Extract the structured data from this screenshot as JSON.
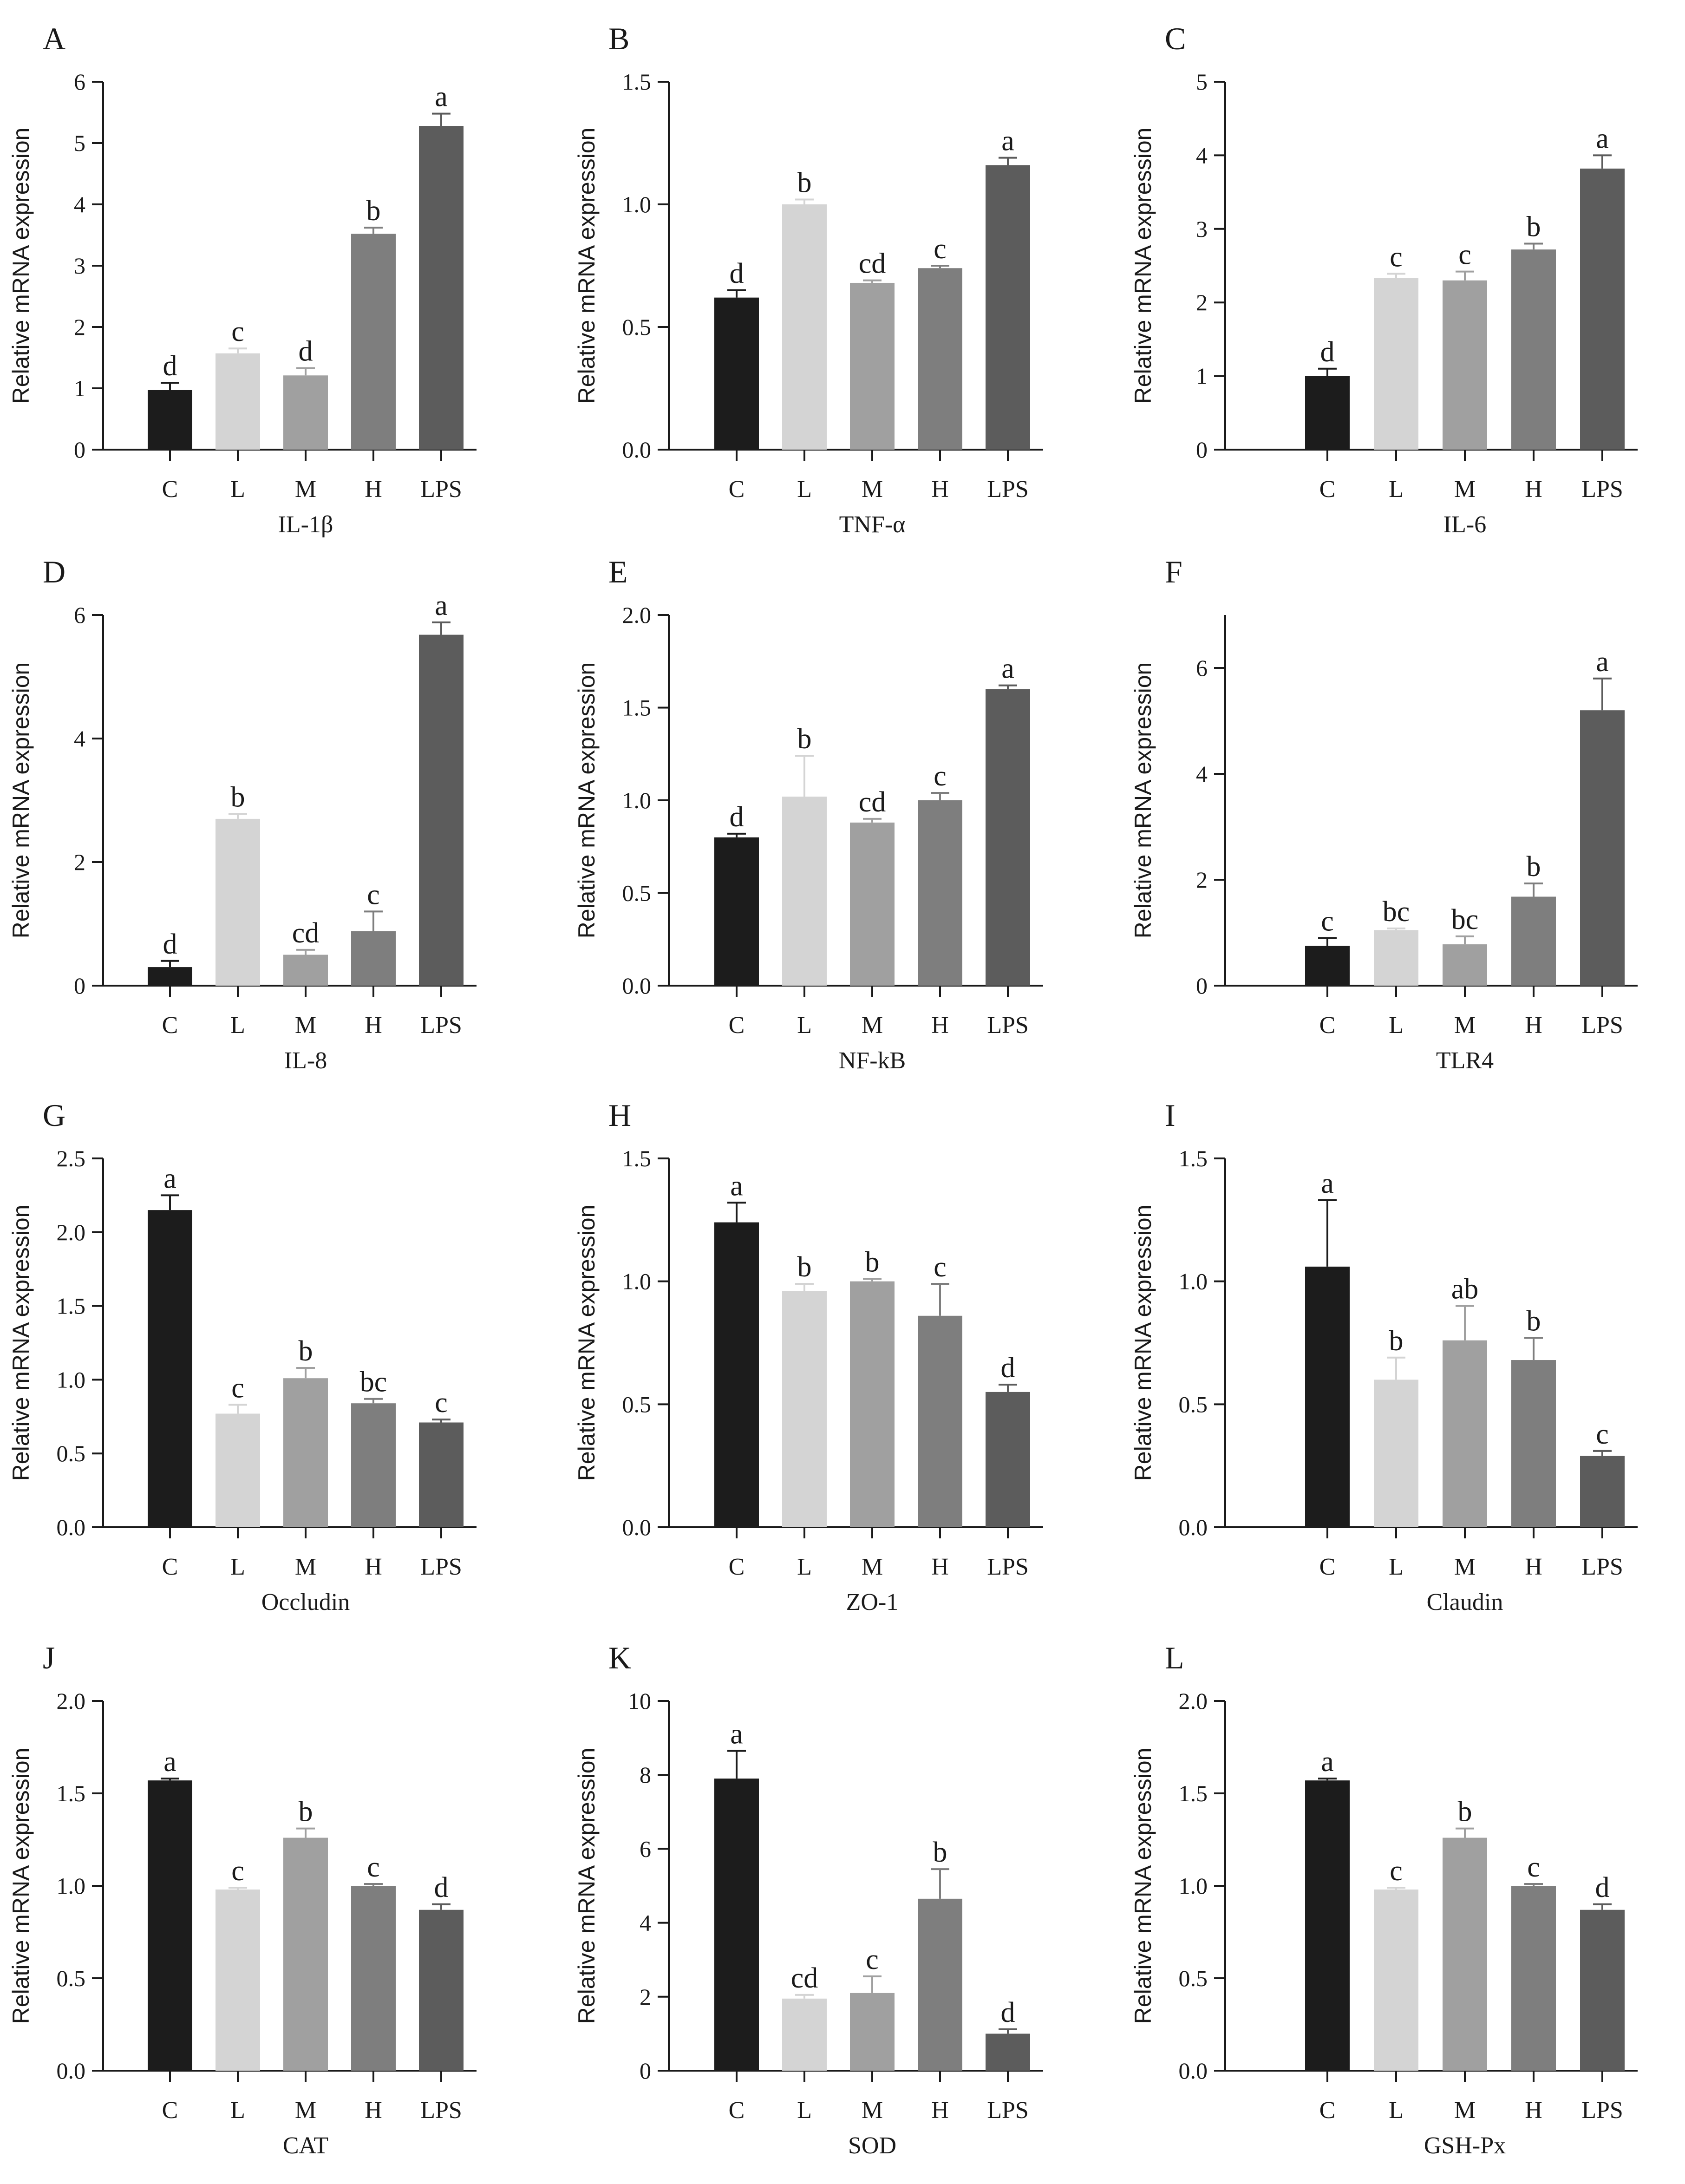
{
  "y_axis_label": "Relative mRNA expression",
  "colors": {
    "C": "#1c1c1c",
    "L": "#d4d4d4",
    "M": "#a0a0a0",
    "H": "#7e7e7e",
    "LPS": "#5c5c5c",
    "axis": "#1a1a1a"
  },
  "chart_data": [
    {
      "type": "bar",
      "panel": "A",
      "title": "IL-1β",
      "categories": [
        "C",
        "L",
        "M",
        "H",
        "LPS"
      ],
      "values": [
        0.97,
        1.57,
        1.21,
        3.52,
        5.28
      ],
      "errors": [
        0.12,
        0.08,
        0.12,
        0.1,
        0.2
      ],
      "letters": [
        "d",
        "c",
        "d",
        "b",
        "a"
      ],
      "ylim": [
        0,
        6
      ],
      "yticks": [
        "0",
        "1",
        "2",
        "3",
        "4",
        "5",
        "6"
      ]
    },
    {
      "type": "bar",
      "panel": "B",
      "title": "TNF-α",
      "categories": [
        "C",
        "L",
        "M",
        "H",
        "LPS"
      ],
      "values": [
        0.62,
        1.0,
        0.68,
        0.74,
        1.16
      ],
      "errors": [
        0.03,
        0.02,
        0.01,
        0.01,
        0.03
      ],
      "letters": [
        "d",
        "b",
        "cd",
        "c",
        "a"
      ],
      "ylim": [
        0,
        1.5
      ],
      "yticks": [
        "0.0",
        "0.5",
        "1.0",
        "1.5"
      ]
    },
    {
      "type": "bar",
      "panel": "C",
      "title": "IL-6",
      "categories": [
        "C",
        "L",
        "M",
        "H",
        "LPS"
      ],
      "values": [
        1.0,
        2.33,
        2.3,
        2.72,
        3.82
      ],
      "errors": [
        0.1,
        0.06,
        0.12,
        0.08,
        0.18
      ],
      "letters": [
        "d",
        "c",
        "c",
        "b",
        "a"
      ],
      "ylim": [
        0,
        5
      ],
      "yticks": [
        "0",
        "1",
        "2",
        "3",
        "4",
        "5"
      ]
    },
    {
      "type": "bar",
      "panel": "D",
      "title": "IL-8",
      "categories": [
        "C",
        "L",
        "M",
        "H",
        "LPS"
      ],
      "values": [
        0.3,
        2.7,
        0.5,
        0.88,
        5.68
      ],
      "errors": [
        0.1,
        0.08,
        0.08,
        0.32,
        0.2
      ],
      "letters": [
        "d",
        "b",
        "cd",
        "c",
        "a"
      ],
      "ylim": [
        0,
        6
      ],
      "yticks": [
        "0",
        "2",
        "4",
        "6"
      ]
    },
    {
      "type": "bar",
      "panel": "E",
      "title": "NF-kB",
      "categories": [
        "C",
        "L",
        "M",
        "H",
        "LPS"
      ],
      "values": [
        0.8,
        1.02,
        0.88,
        1.0,
        1.6
      ],
      "errors": [
        0.02,
        0.22,
        0.02,
        0.04,
        0.02
      ],
      "letters": [
        "d",
        "b",
        "cd",
        "c",
        "a"
      ],
      "ylim": [
        0,
        2.0
      ],
      "yticks": [
        "0.0",
        "0.5",
        "1.0",
        "1.5",
        "2.0"
      ]
    },
    {
      "type": "bar",
      "panel": "F",
      "title": "TLR4",
      "categories": [
        "C",
        "L",
        "M",
        "H",
        "LPS"
      ],
      "values": [
        0.75,
        1.05,
        0.78,
        1.68,
        5.2
      ],
      "errors": [
        0.15,
        0.03,
        0.15,
        0.25,
        0.6
      ],
      "letters": [
        "c",
        "bc",
        "bc",
        "b",
        "a"
      ],
      "ylim": [
        0,
        7
      ],
      "yticks": [
        "0",
        "2",
        "4",
        "6"
      ]
    },
    {
      "type": "bar",
      "panel": "G",
      "title": "Occludin",
      "categories": [
        "C",
        "L",
        "M",
        "H",
        "LPS"
      ],
      "values": [
        2.15,
        0.77,
        1.01,
        0.84,
        0.71
      ],
      "errors": [
        0.1,
        0.06,
        0.07,
        0.03,
        0.02
      ],
      "letters": [
        "a",
        "c",
        "b",
        "bc",
        "c"
      ],
      "ylim": [
        0,
        2.5
      ],
      "yticks": [
        "0.0",
        "0.5",
        "1.0",
        "1.5",
        "2.0",
        "2.5"
      ]
    },
    {
      "type": "bar",
      "panel": "H",
      "title": "ZO-1",
      "categories": [
        "C",
        "L",
        "M",
        "H",
        "LPS"
      ],
      "values": [
        1.24,
        0.96,
        1.0,
        0.86,
        0.55
      ],
      "errors": [
        0.08,
        0.03,
        0.01,
        0.13,
        0.03
      ],
      "letters": [
        "a",
        "b",
        "b",
        "c",
        "d"
      ],
      "ylim": [
        0,
        1.5
      ],
      "yticks": [
        "0.0",
        "0.5",
        "1.0",
        "1.5"
      ]
    },
    {
      "type": "bar",
      "panel": "I",
      "title": "Claudin",
      "categories": [
        "C",
        "L",
        "M",
        "H",
        "LPS"
      ],
      "values": [
        1.06,
        0.6,
        0.76,
        0.68,
        0.29
      ],
      "errors": [
        0.27,
        0.09,
        0.14,
        0.09,
        0.02
      ],
      "letters": [
        "a",
        "b",
        "ab",
        "b",
        "c"
      ],
      "ylim": [
        0,
        1.5
      ],
      "yticks": [
        "0.0",
        "0.5",
        "1.0",
        "1.5"
      ]
    },
    {
      "type": "bar",
      "panel": "J",
      "title": "CAT",
      "categories": [
        "C",
        "L",
        "M",
        "H",
        "LPS"
      ],
      "values": [
        1.57,
        0.98,
        1.26,
        1.0,
        0.87
      ],
      "errors": [
        0.01,
        0.01,
        0.05,
        0.01,
        0.03
      ],
      "letters": [
        "a",
        "c",
        "b",
        "c",
        "d"
      ],
      "ylim": [
        0,
        2.0
      ],
      "yticks": [
        "0.0",
        "0.5",
        "1.0",
        "1.5",
        "2.0"
      ]
    },
    {
      "type": "bar",
      "panel": "K",
      "title": "SOD",
      "categories": [
        "C",
        "L",
        "M",
        "H",
        "LPS"
      ],
      "values": [
        7.9,
        1.95,
        2.1,
        4.65,
        1.0
      ],
      "errors": [
        0.75,
        0.1,
        0.45,
        0.8,
        0.12
      ],
      "letters": [
        "a",
        "cd",
        "c",
        "b",
        "d"
      ],
      "ylim": [
        0,
        10
      ],
      "yticks": [
        "0",
        "2",
        "4",
        "6",
        "8",
        "10"
      ]
    },
    {
      "type": "bar",
      "panel": "L",
      "title": "GSH-Px",
      "categories": [
        "C",
        "L",
        "M",
        "H",
        "LPS"
      ],
      "values": [
        1.57,
        0.98,
        1.26,
        1.0,
        0.87
      ],
      "errors": [
        0.01,
        0.01,
        0.05,
        0.01,
        0.03
      ],
      "letters": [
        "a",
        "c",
        "b",
        "c",
        "d"
      ],
      "ylim": [
        0,
        2.0
      ],
      "yticks": [
        "0.0",
        "0.5",
        "1.0",
        "1.5",
        "2.0"
      ]
    }
  ]
}
